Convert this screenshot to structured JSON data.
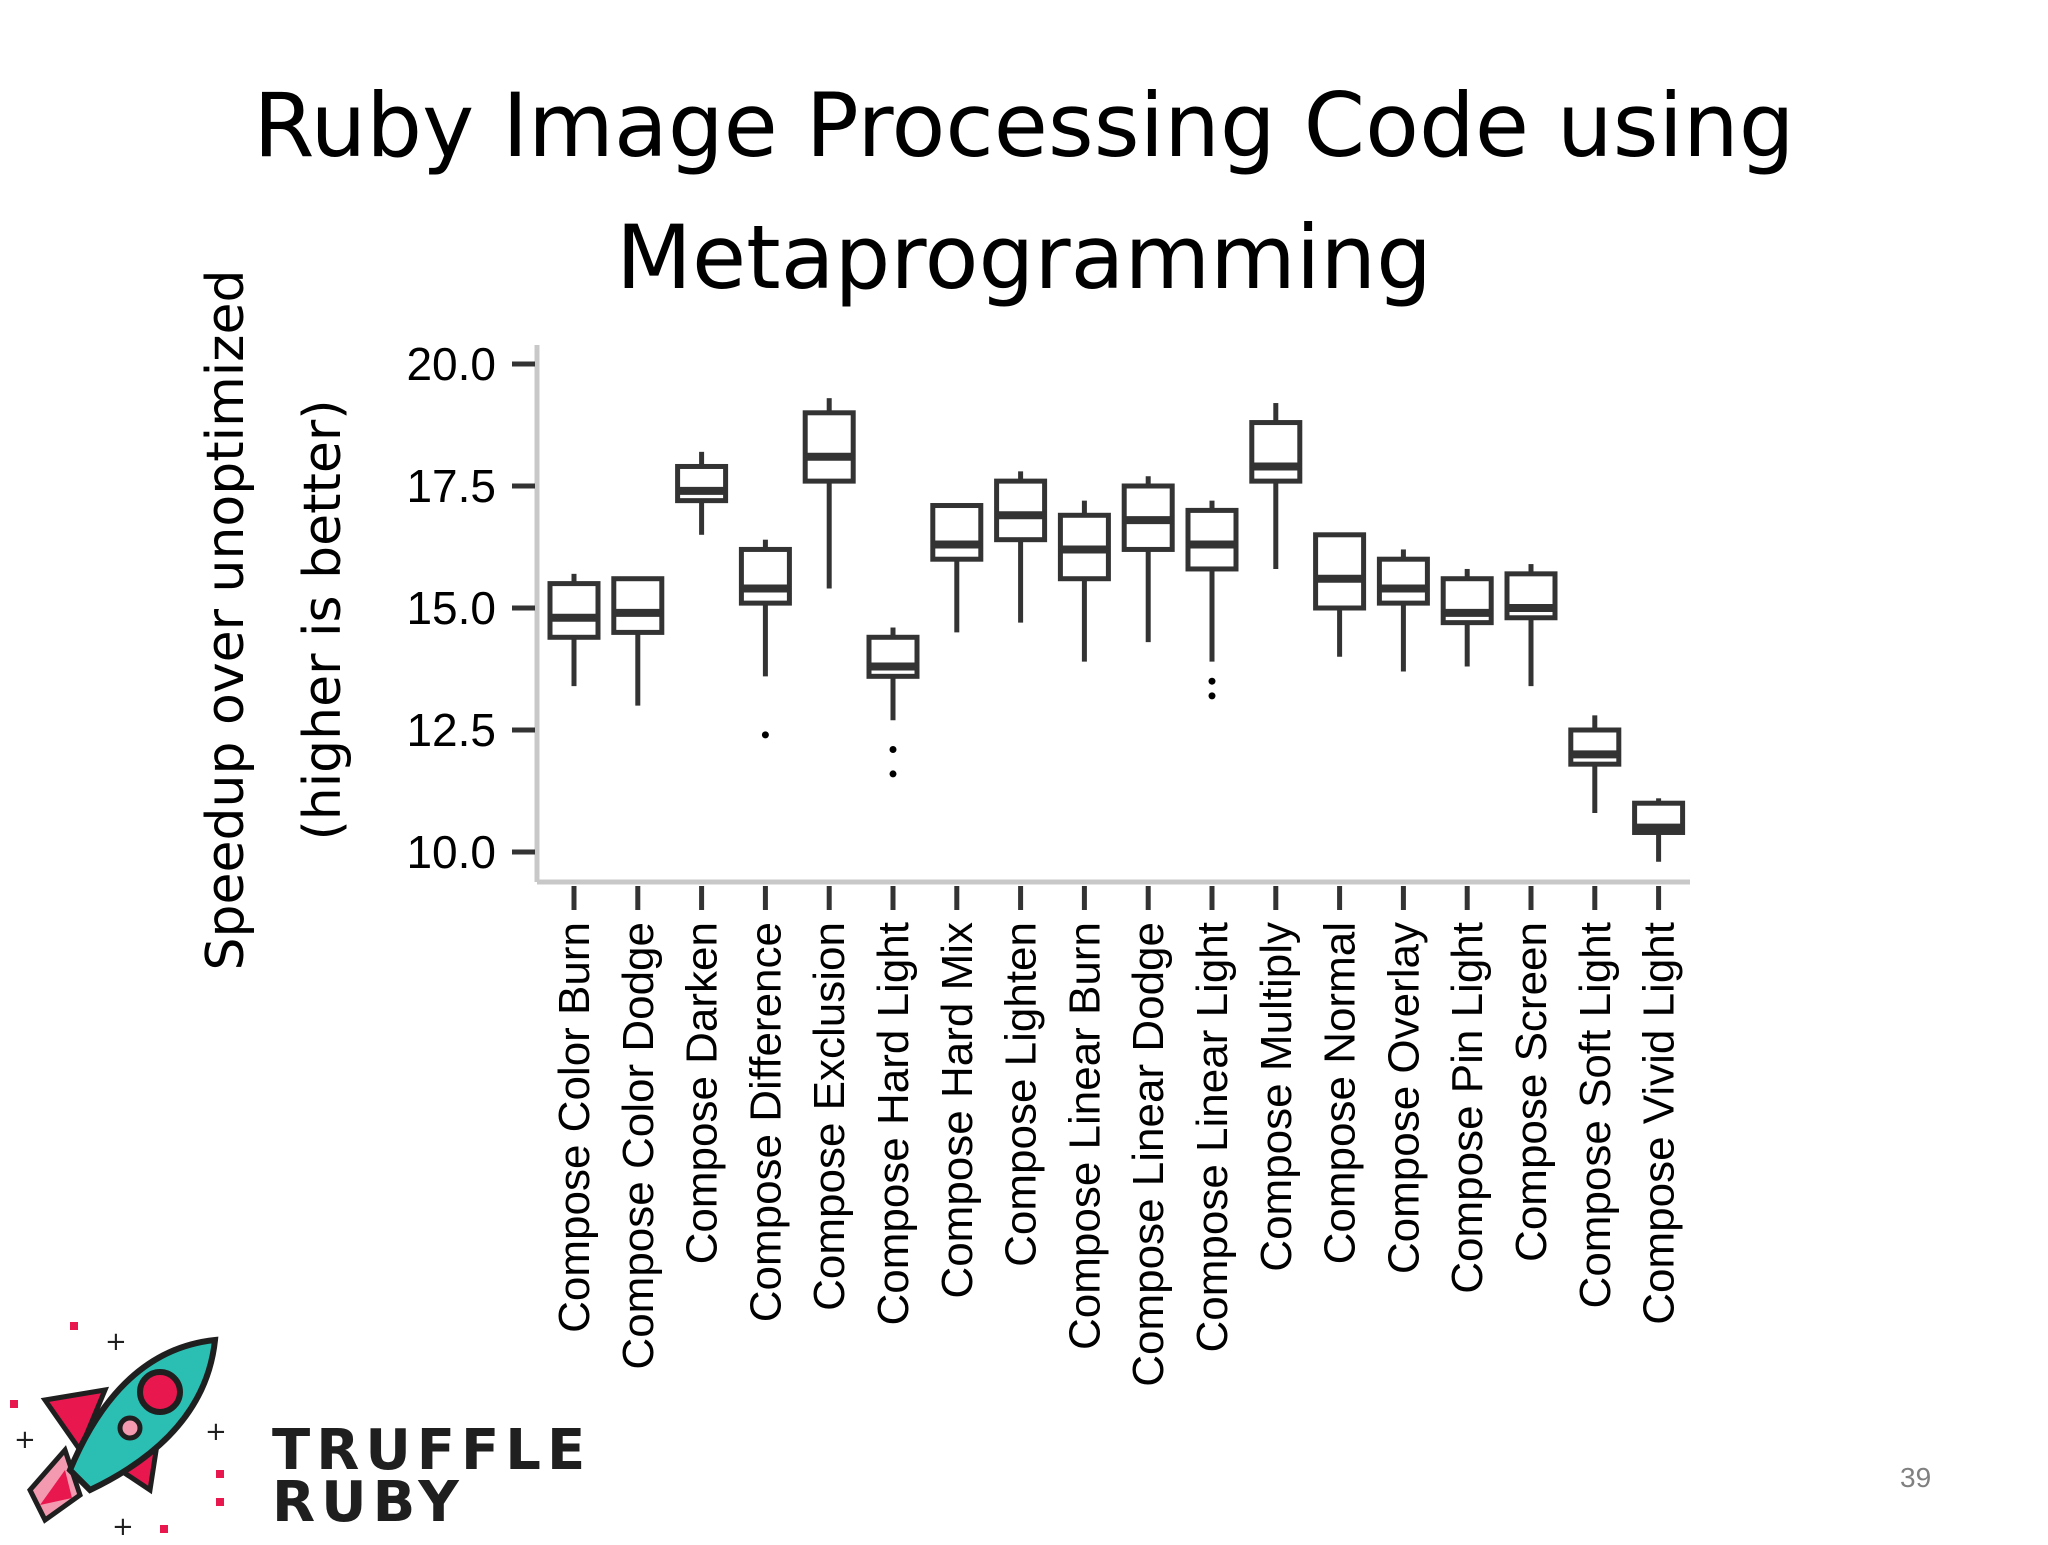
{
  "title": "Ruby Image Processing Code using Metaprogramming",
  "page_number": "39",
  "brand": {
    "line1": "TRUFFLE",
    "line2": "RUBY"
  },
  "logo_colors": {
    "rocket": "#2bbfb3",
    "flame": "#e8184f",
    "dark": "#1f1f1f",
    "pink": "#f39ab0"
  },
  "chart_data": {
    "type": "boxplot",
    "ylabel_line1": "Speedup over unoptimized",
    "ylabel_line2": "(higher is better)",
    "xlabel": "",
    "ylim": [
      9.3,
      20.3
    ],
    "yticks": [
      "10.0",
      "12.5",
      "15.0",
      "17.5",
      "20.0"
    ],
    "grid": false,
    "categories": [
      "Compose Color Burn",
      "Compose Color Dodge",
      "Compose Darken",
      "Compose Difference",
      "Compose Exclusion",
      "Compose Hard Light",
      "Compose Hard Mix",
      "Compose Lighten",
      "Compose Linear Burn",
      "Compose Linear Dodge",
      "Compose Linear Light",
      "Compose Multiply",
      "Compose Normal",
      "Compose Overlay",
      "Compose Pin Light",
      "Compose Screen",
      "Compose Soft Light",
      "Compose Vivid Light"
    ],
    "boxes": [
      {
        "min": 13.4,
        "q1": 14.4,
        "median": 14.8,
        "q3": 15.5,
        "max": 15.7,
        "outliers": []
      },
      {
        "min": 13.0,
        "q1": 14.5,
        "median": 14.9,
        "q3": 15.6,
        "max": 15.6,
        "outliers": []
      },
      {
        "min": 16.5,
        "q1": 17.2,
        "median": 17.4,
        "q3": 17.9,
        "max": 18.2,
        "outliers": []
      },
      {
        "min": 13.6,
        "q1": 15.1,
        "median": 15.4,
        "q3": 16.2,
        "max": 16.4,
        "outliers": [
          12.4
        ]
      },
      {
        "min": 15.4,
        "q1": 17.6,
        "median": 18.1,
        "q3": 19.0,
        "max": 19.3,
        "outliers": []
      },
      {
        "min": 12.7,
        "q1": 13.6,
        "median": 13.8,
        "q3": 14.4,
        "max": 14.6,
        "outliers": [
          12.1,
          11.6
        ]
      },
      {
        "min": 14.5,
        "q1": 16.0,
        "median": 16.3,
        "q3": 17.1,
        "max": 17.1,
        "outliers": []
      },
      {
        "min": 14.7,
        "q1": 16.4,
        "median": 16.9,
        "q3": 17.6,
        "max": 17.8,
        "outliers": []
      },
      {
        "min": 13.9,
        "q1": 15.6,
        "median": 16.2,
        "q3": 16.9,
        "max": 17.2,
        "outliers": []
      },
      {
        "min": 14.3,
        "q1": 16.2,
        "median": 16.8,
        "q3": 17.5,
        "max": 17.7,
        "outliers": []
      },
      {
        "min": 13.9,
        "q1": 15.8,
        "median": 16.3,
        "q3": 17.0,
        "max": 17.2,
        "outliers": [
          13.5,
          13.2
        ]
      },
      {
        "min": 15.8,
        "q1": 17.6,
        "median": 17.9,
        "q3": 18.8,
        "max": 19.2,
        "outliers": []
      },
      {
        "min": 14.0,
        "q1": 15.0,
        "median": 15.6,
        "q3": 16.5,
        "max": 16.5,
        "outliers": []
      },
      {
        "min": 13.7,
        "q1": 15.1,
        "median": 15.4,
        "q3": 16.0,
        "max": 16.2,
        "outliers": []
      },
      {
        "min": 13.8,
        "q1": 14.7,
        "median": 14.9,
        "q3": 15.6,
        "max": 15.8,
        "outliers": []
      },
      {
        "min": 13.4,
        "q1": 14.8,
        "median": 15.0,
        "q3": 15.7,
        "max": 15.9,
        "outliers": []
      },
      {
        "min": 10.8,
        "q1": 11.8,
        "median": 12.0,
        "q3": 12.5,
        "max": 12.8,
        "outliers": []
      },
      {
        "min": 9.8,
        "q1": 10.4,
        "median": 10.5,
        "q3": 11.0,
        "max": 11.1,
        "outliers": []
      }
    ]
  }
}
